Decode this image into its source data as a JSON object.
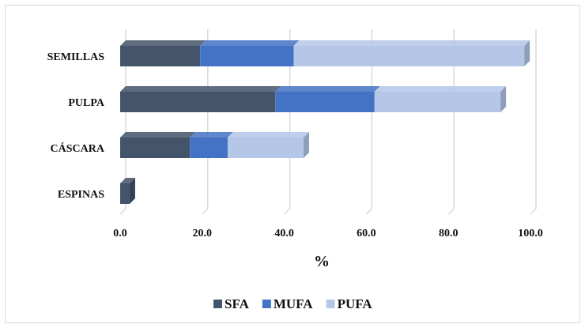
{
  "chart_data": {
    "type": "bar",
    "orientation": "horizontal",
    "stacked": true,
    "style": "3d",
    "categories": [
      "SEMILLAS",
      "PULPA",
      "CÁSCARA",
      "ESPINAS"
    ],
    "series": [
      {
        "name": "SFA",
        "values": [
          19.5,
          37.8,
          17.0,
          2.3
        ],
        "color": "#44546a"
      },
      {
        "name": "MUFA",
        "values": [
          22.8,
          24.2,
          9.2,
          0.0
        ],
        "color": "#4472c4"
      },
      {
        "name": "PUFA",
        "values": [
          56.2,
          30.7,
          18.5,
          0.0
        ],
        "color": "#b4c7e7"
      }
    ],
    "xlim": [
      0,
      100
    ],
    "x_ticks": [
      "0.0",
      "20.0",
      "40.0",
      "60.0",
      "80.0",
      "100.0"
    ],
    "xlabel": "%",
    "ylabel": "",
    "grid": true,
    "legend_position": "bottom"
  }
}
